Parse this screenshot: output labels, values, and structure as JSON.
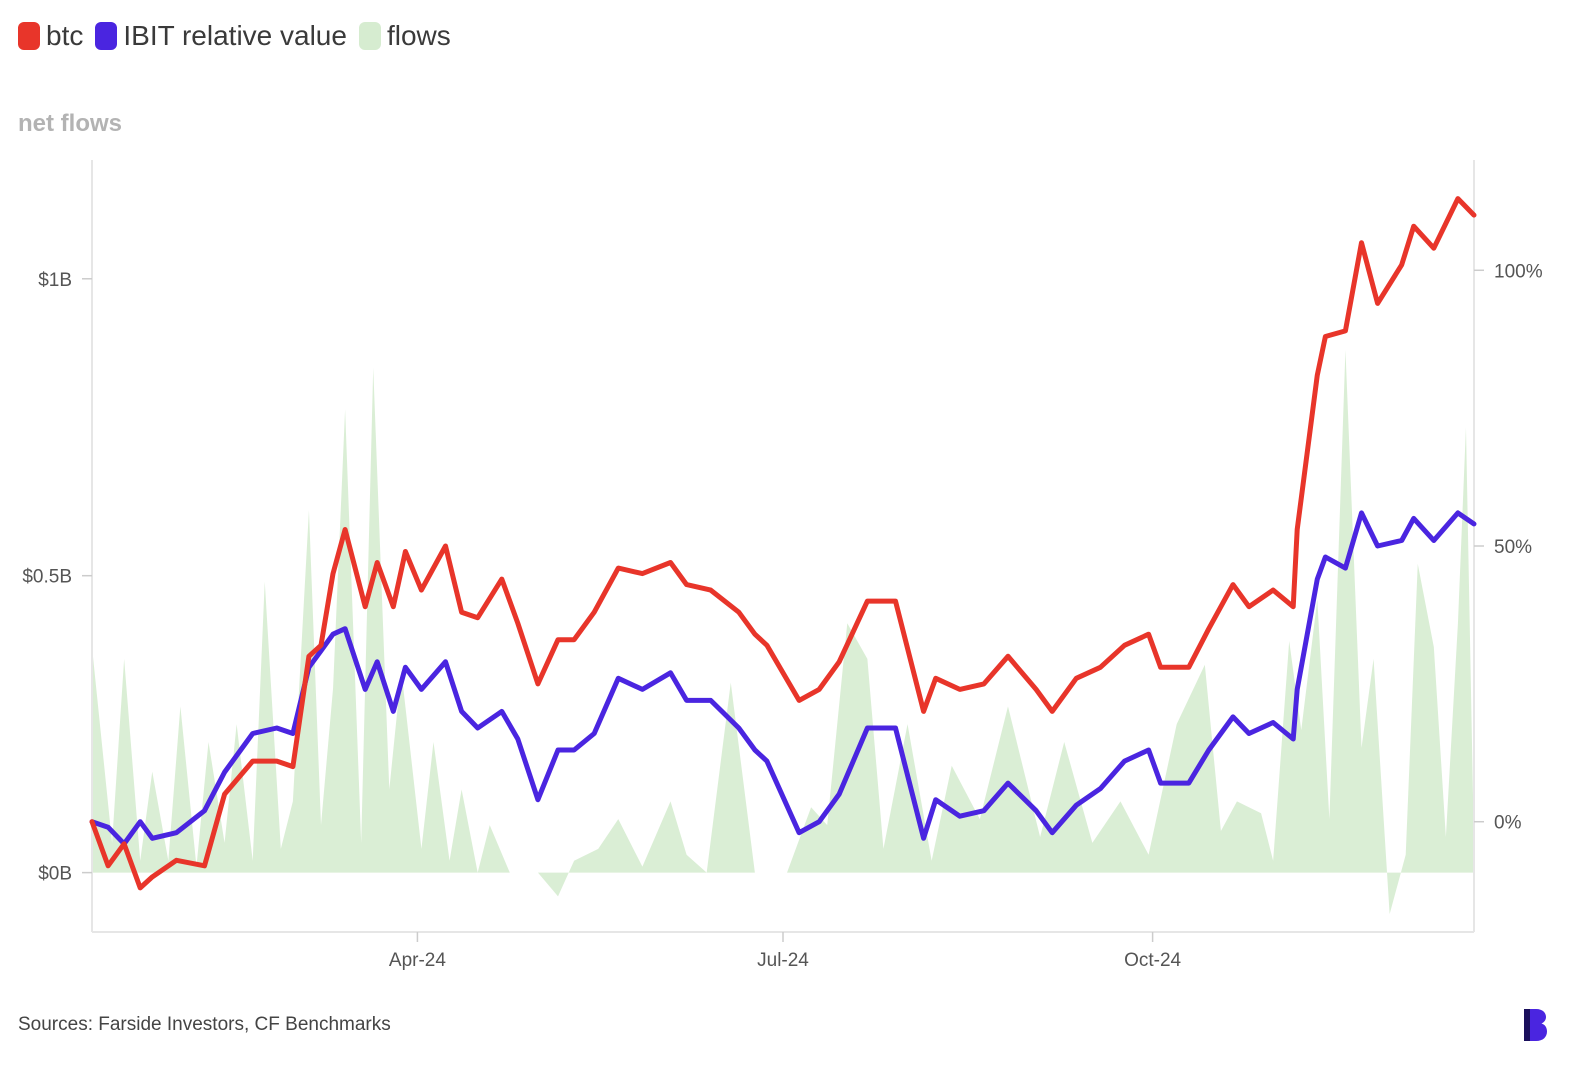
{
  "legend": {
    "btc": {
      "label": "btc",
      "color": "#e8352a"
    },
    "ibit": {
      "label": "IBIT relative value",
      "color": "#4a25e0"
    },
    "flows": {
      "label": "flows",
      "color": "#d6ecd0"
    }
  },
  "subtitle": "net flows",
  "source": "Sources: Farside Investors, CF Benchmarks",
  "logo_icon": "brand-b-logo-icon",
  "chart_data": {
    "type": "line",
    "x_axis": {
      "ticks": [
        "Apr-24",
        "Jul-24",
        "Oct-24"
      ],
      "tick_dates": [
        "2024-04-01",
        "2024-07-01",
        "2024-10-01"
      ],
      "range": [
        "2024-01-11",
        "2024-12-20"
      ]
    },
    "left_axis": {
      "label": "",
      "ticks": [
        "$0B",
        "$0.5B",
        "$1B"
      ],
      "tick_values": [
        0,
        0.5,
        1
      ],
      "range": [
        -0.1,
        1.2
      ],
      "unit": "B USD"
    },
    "right_axis": {
      "label": "",
      "ticks": [
        "0%",
        "50%",
        "100%"
      ],
      "tick_values": [
        0,
        50,
        100
      ],
      "range": [
        -20,
        120
      ],
      "unit": "%"
    },
    "grid": false,
    "legend_position": "top-left",
    "series": [
      {
        "name": "btc",
        "axis": "right",
        "color": "#e8352a",
        "values": [
          [
            "2024-01-11",
            0
          ],
          [
            "2024-01-15",
            -8
          ],
          [
            "2024-01-19",
            -4
          ],
          [
            "2024-01-23",
            -12
          ],
          [
            "2024-01-26",
            -10
          ],
          [
            "2024-02-01",
            -7
          ],
          [
            "2024-02-08",
            -8
          ],
          [
            "2024-02-13",
            5
          ],
          [
            "2024-02-20",
            11
          ],
          [
            "2024-02-26",
            11
          ],
          [
            "2024-03-01",
            10
          ],
          [
            "2024-03-05",
            30
          ],
          [
            "2024-03-08",
            32
          ],
          [
            "2024-03-11",
            45
          ],
          [
            "2024-03-14",
            53
          ],
          [
            "2024-03-19",
            39
          ],
          [
            "2024-03-22",
            47
          ],
          [
            "2024-03-26",
            39
          ],
          [
            "2024-03-29",
            49
          ],
          [
            "2024-04-02",
            42
          ],
          [
            "2024-04-08",
            50
          ],
          [
            "2024-04-12",
            38
          ],
          [
            "2024-04-16",
            37
          ],
          [
            "2024-04-22",
            44
          ],
          [
            "2024-04-26",
            36
          ],
          [
            "2024-05-01",
            25
          ],
          [
            "2024-05-06",
            33
          ],
          [
            "2024-05-10",
            33
          ],
          [
            "2024-05-15",
            38
          ],
          [
            "2024-05-21",
            46
          ],
          [
            "2024-05-27",
            45
          ],
          [
            "2024-06-03",
            47
          ],
          [
            "2024-06-07",
            43
          ],
          [
            "2024-06-13",
            42
          ],
          [
            "2024-06-20",
            38
          ],
          [
            "2024-06-24",
            34
          ],
          [
            "2024-06-27",
            32
          ],
          [
            "2024-07-05",
            22
          ],
          [
            "2024-07-10",
            24
          ],
          [
            "2024-07-15",
            29
          ],
          [
            "2024-07-22",
            40
          ],
          [
            "2024-07-29",
            40
          ],
          [
            "2024-08-05",
            20
          ],
          [
            "2024-08-08",
            26
          ],
          [
            "2024-08-14",
            24
          ],
          [
            "2024-08-20",
            25
          ],
          [
            "2024-08-26",
            30
          ],
          [
            "2024-09-02",
            24
          ],
          [
            "2024-09-06",
            20
          ],
          [
            "2024-09-12",
            26
          ],
          [
            "2024-09-18",
            28
          ],
          [
            "2024-09-24",
            32
          ],
          [
            "2024-09-30",
            34
          ],
          [
            "2024-10-03",
            28
          ],
          [
            "2024-10-10",
            28
          ],
          [
            "2024-10-15",
            35
          ],
          [
            "2024-10-21",
            43
          ],
          [
            "2024-10-25",
            39
          ],
          [
            "2024-10-31",
            42
          ],
          [
            "2024-11-05",
            39
          ],
          [
            "2024-11-06",
            53
          ],
          [
            "2024-11-11",
            81
          ],
          [
            "2024-11-13",
            88
          ],
          [
            "2024-11-18",
            89
          ],
          [
            "2024-11-22",
            105
          ],
          [
            "2024-11-26",
            94
          ],
          [
            "2024-12-02",
            101
          ],
          [
            "2024-12-05",
            108
          ],
          [
            "2024-12-10",
            104
          ],
          [
            "2024-12-16",
            113
          ],
          [
            "2024-12-20",
            110
          ]
        ]
      },
      {
        "name": "IBIT relative value",
        "axis": "right",
        "color": "#4a25e0",
        "values": [
          [
            "2024-01-11",
            0
          ],
          [
            "2024-01-15",
            -1
          ],
          [
            "2024-01-19",
            -4
          ],
          [
            "2024-01-23",
            0
          ],
          [
            "2024-01-26",
            -3
          ],
          [
            "2024-02-01",
            -2
          ],
          [
            "2024-02-08",
            2
          ],
          [
            "2024-02-13",
            9
          ],
          [
            "2024-02-20",
            16
          ],
          [
            "2024-02-26",
            17
          ],
          [
            "2024-03-01",
            16
          ],
          [
            "2024-03-05",
            28
          ],
          [
            "2024-03-08",
            31
          ],
          [
            "2024-03-11",
            34
          ],
          [
            "2024-03-14",
            35
          ],
          [
            "2024-03-19",
            24
          ],
          [
            "2024-03-22",
            29
          ],
          [
            "2024-03-26",
            20
          ],
          [
            "2024-03-29",
            28
          ],
          [
            "2024-04-02",
            24
          ],
          [
            "2024-04-08",
            29
          ],
          [
            "2024-04-12",
            20
          ],
          [
            "2024-04-16",
            17
          ],
          [
            "2024-04-22",
            20
          ],
          [
            "2024-04-26",
            15
          ],
          [
            "2024-05-01",
            4
          ],
          [
            "2024-05-06",
            13
          ],
          [
            "2024-05-10",
            13
          ],
          [
            "2024-05-15",
            16
          ],
          [
            "2024-05-21",
            26
          ],
          [
            "2024-05-27",
            24
          ],
          [
            "2024-06-03",
            27
          ],
          [
            "2024-06-07",
            22
          ],
          [
            "2024-06-13",
            22
          ],
          [
            "2024-06-20",
            17
          ],
          [
            "2024-06-24",
            13
          ],
          [
            "2024-06-27",
            11
          ],
          [
            "2024-07-05",
            -2
          ],
          [
            "2024-07-10",
            0
          ],
          [
            "2024-07-15",
            5
          ],
          [
            "2024-07-22",
            17
          ],
          [
            "2024-07-29",
            17
          ],
          [
            "2024-08-05",
            -3
          ],
          [
            "2024-08-08",
            4
          ],
          [
            "2024-08-14",
            1
          ],
          [
            "2024-08-20",
            2
          ],
          [
            "2024-08-26",
            7
          ],
          [
            "2024-09-02",
            2
          ],
          [
            "2024-09-06",
            -2
          ],
          [
            "2024-09-12",
            3
          ],
          [
            "2024-09-18",
            6
          ],
          [
            "2024-09-24",
            11
          ],
          [
            "2024-09-30",
            13
          ],
          [
            "2024-10-03",
            7
          ],
          [
            "2024-10-10",
            7
          ],
          [
            "2024-10-15",
            13
          ],
          [
            "2024-10-21",
            19
          ],
          [
            "2024-10-25",
            16
          ],
          [
            "2024-10-31",
            18
          ],
          [
            "2024-11-05",
            15
          ],
          [
            "2024-11-06",
            24
          ],
          [
            "2024-11-11",
            44
          ],
          [
            "2024-11-13",
            48
          ],
          [
            "2024-11-18",
            46
          ],
          [
            "2024-11-22",
            56
          ],
          [
            "2024-11-26",
            50
          ],
          [
            "2024-12-02",
            51
          ],
          [
            "2024-12-05",
            55
          ],
          [
            "2024-12-10",
            51
          ],
          [
            "2024-12-16",
            56
          ],
          [
            "2024-12-20",
            54
          ]
        ]
      },
      {
        "name": "flows",
        "axis": "left",
        "type": "area",
        "color": "#d6ecd0",
        "values": [
          [
            "2024-01-11",
            0.38
          ],
          [
            "2024-01-16",
            0.05
          ],
          [
            "2024-01-19",
            0.36
          ],
          [
            "2024-01-23",
            0.02
          ],
          [
            "2024-01-26",
            0.17
          ],
          [
            "2024-01-30",
            0.02
          ],
          [
            "2024-02-02",
            0.28
          ],
          [
            "2024-02-06",
            0.01
          ],
          [
            "2024-02-09",
            0.22
          ],
          [
            "2024-02-13",
            0.05
          ],
          [
            "2024-02-16",
            0.25
          ],
          [
            "2024-02-20",
            0.02
          ],
          [
            "2024-02-23",
            0.49
          ],
          [
            "2024-02-27",
            0.04
          ],
          [
            "2024-03-01",
            0.12
          ],
          [
            "2024-03-05",
            0.61
          ],
          [
            "2024-03-08",
            0.08
          ],
          [
            "2024-03-11",
            0.31
          ],
          [
            "2024-03-14",
            0.78
          ],
          [
            "2024-03-18",
            0.05
          ],
          [
            "2024-03-21",
            0.85
          ],
          [
            "2024-03-25",
            0.14
          ],
          [
            "2024-03-28",
            0.34
          ],
          [
            "2024-04-02",
            0.04
          ],
          [
            "2024-04-05",
            0.22
          ],
          [
            "2024-04-09",
            0.02
          ],
          [
            "2024-04-12",
            0.14
          ],
          [
            "2024-04-16",
            0.0
          ],
          [
            "2024-04-19",
            0.08
          ],
          [
            "2024-04-24",
            0.0
          ],
          [
            "2024-05-01",
            0.0
          ],
          [
            "2024-05-06",
            -0.04
          ],
          [
            "2024-05-10",
            0.02
          ],
          [
            "2024-05-16",
            0.04
          ],
          [
            "2024-05-21",
            0.09
          ],
          [
            "2024-05-27",
            0.01
          ],
          [
            "2024-06-03",
            0.12
          ],
          [
            "2024-06-07",
            0.03
          ],
          [
            "2024-06-12",
            0.0
          ],
          [
            "2024-06-18",
            0.32
          ],
          [
            "2024-06-24",
            0.0
          ],
          [
            "2024-07-02",
            0.0
          ],
          [
            "2024-07-08",
            0.11
          ],
          [
            "2024-07-12",
            0.08
          ],
          [
            "2024-07-17",
            0.42
          ],
          [
            "2024-07-22",
            0.36
          ],
          [
            "2024-07-26",
            0.04
          ],
          [
            "2024-08-01",
            0.25
          ],
          [
            "2024-08-07",
            0.02
          ],
          [
            "2024-08-12",
            0.18
          ],
          [
            "2024-08-19",
            0.09
          ],
          [
            "2024-08-26",
            0.28
          ],
          [
            "2024-09-03",
            0.06
          ],
          [
            "2024-09-09",
            0.22
          ],
          [
            "2024-09-16",
            0.05
          ],
          [
            "2024-09-23",
            0.12
          ],
          [
            "2024-09-30",
            0.03
          ],
          [
            "2024-10-07",
            0.25
          ],
          [
            "2024-10-14",
            0.35
          ],
          [
            "2024-10-18",
            0.07
          ],
          [
            "2024-10-22",
            0.12
          ],
          [
            "2024-10-28",
            0.1
          ],
          [
            "2024-10-31",
            0.02
          ],
          [
            "2024-11-04",
            0.39
          ],
          [
            "2024-11-07",
            0.24
          ],
          [
            "2024-11-11",
            0.46
          ],
          [
            "2024-11-14",
            0.09
          ],
          [
            "2024-11-18",
            0.88
          ],
          [
            "2024-11-22",
            0.21
          ],
          [
            "2024-11-25",
            0.36
          ],
          [
            "2024-11-29",
            -0.07
          ],
          [
            "2024-12-03",
            0.03
          ],
          [
            "2024-12-06",
            0.52
          ],
          [
            "2024-12-10",
            0.38
          ],
          [
            "2024-12-13",
            0.06
          ],
          [
            "2024-12-16",
            0.42
          ],
          [
            "2024-12-18",
            0.75
          ],
          [
            "2024-12-20",
            0.04
          ]
        ]
      }
    ]
  }
}
